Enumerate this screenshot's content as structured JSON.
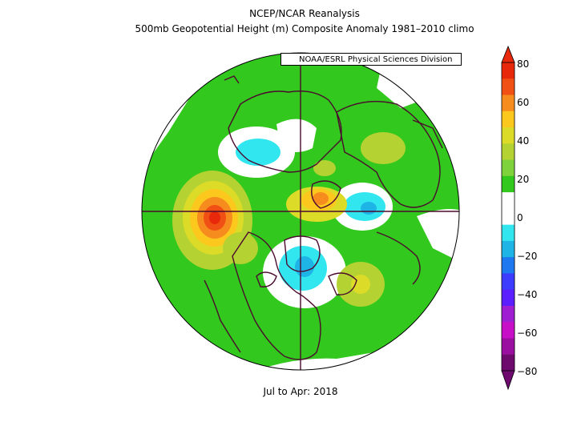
{
  "header": {
    "title_line1": "NCEP/NCAR Reanalysis",
    "title_line2": "500mb Geopotential Height (m) Composite Anomaly 1981–2010 climo",
    "credit": "NOAA/ESRL Physical Sciences Division"
  },
  "footer": {
    "period": "Jul to Apr: 2018"
  },
  "colorbar": {
    "labels": [
      "80",
      "60",
      "40",
      "20",
      "0",
      "−20",
      "−40",
      "−60",
      "−80"
    ],
    "colors": [
      "#e8280a",
      "#f05014",
      "#f78c1e",
      "#fcc81e",
      "#dcdc28",
      "#b4d232",
      "#7ed23c",
      "#32c81e",
      "#ffffff",
      "#ffffff",
      "#32e6f0",
      "#1eb4e6",
      "#1e78f0",
      "#3c3cff",
      "#5a1eff",
      "#a01ed2",
      "#c80fc8",
      "#9b0fa0",
      "#6e0a6e"
    ]
  },
  "map": {
    "projection": "north-polar-stereographic",
    "anomalies": [
      {
        "name": "northeast-pacific-ridge",
        "sign": "positive",
        "peak_m": 80
      },
      {
        "name": "north-canada-trough",
        "sign": "negative",
        "peak_m": -20
      },
      {
        "name": "arctic-ridge",
        "sign": "positive",
        "peak_m": 50
      },
      {
        "name": "northern-europe-trough",
        "sign": "negative",
        "peak_m": -20
      },
      {
        "name": "siberia-trough",
        "sign": "negative",
        "peak_m": -30
      },
      {
        "name": "north-atlantic-ridge",
        "sign": "positive",
        "peak_m": 40
      },
      {
        "name": "eastern-europe-ridge",
        "sign": "positive",
        "peak_m": 40
      }
    ]
  }
}
